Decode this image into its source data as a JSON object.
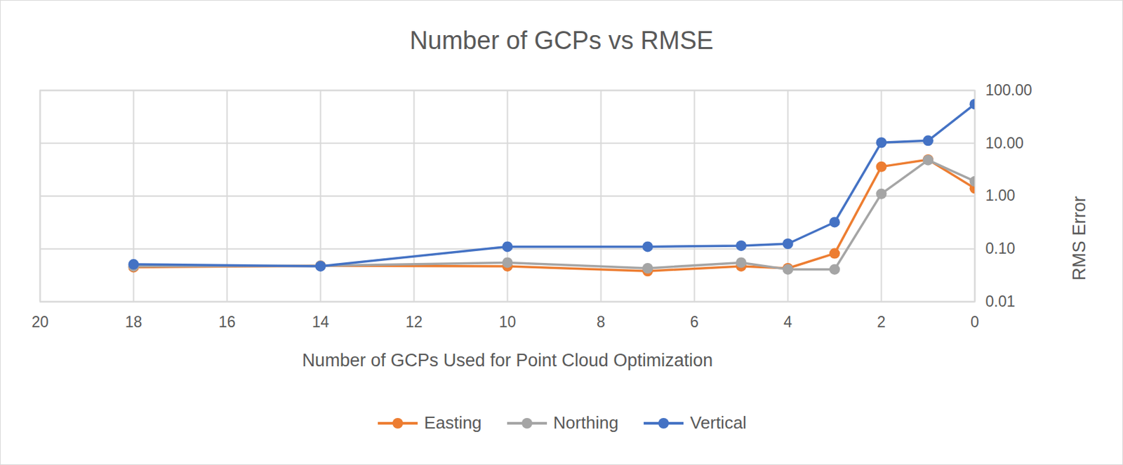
{
  "chart_data": {
    "type": "line",
    "title": "Number of GCPs vs RMSE",
    "x_label": "Number of GCPs Used for Point Cloud Optimization",
    "y_label": "RMS Error",
    "x": [
      18,
      14,
      10,
      7,
      5,
      4,
      3,
      2,
      1,
      0
    ],
    "series": [
      {
        "name": "Easting",
        "color": "#ed7d31",
        "values": [
          0.045,
          0.048,
          0.047,
          0.038,
          0.047,
          0.043,
          0.082,
          3.6,
          4.9,
          1.4
        ]
      },
      {
        "name": "Northing",
        "color": "#a5a5a5",
        "values": [
          0.047,
          0.048,
          0.055,
          0.043,
          0.055,
          0.041,
          0.041,
          1.1,
          4.8,
          1.9
        ]
      },
      {
        "name": "Vertical",
        "color": "#4472c4",
        "values": [
          0.051,
          0.047,
          0.11,
          0.11,
          0.115,
          0.125,
          0.32,
          10.3,
          11.2,
          55
        ]
      }
    ],
    "xlim": [
      20,
      0
    ],
    "xticks": [
      20,
      18,
      16,
      14,
      12,
      10,
      8,
      6,
      4,
      2,
      0
    ],
    "ylim": [
      0.01,
      100
    ],
    "yticks": [
      0.01,
      {
        "value": 0.1,
        "label": "0.10"
      },
      {
        "value": 1,
        "label": "1.00"
      },
      {
        "value": 10,
        "label": "10.00"
      },
      {
        "value": 100,
        "label": "100.00"
      }
    ],
    "log": "y",
    "grid": true,
    "legend": "bottom",
    "marker": "circle"
  }
}
